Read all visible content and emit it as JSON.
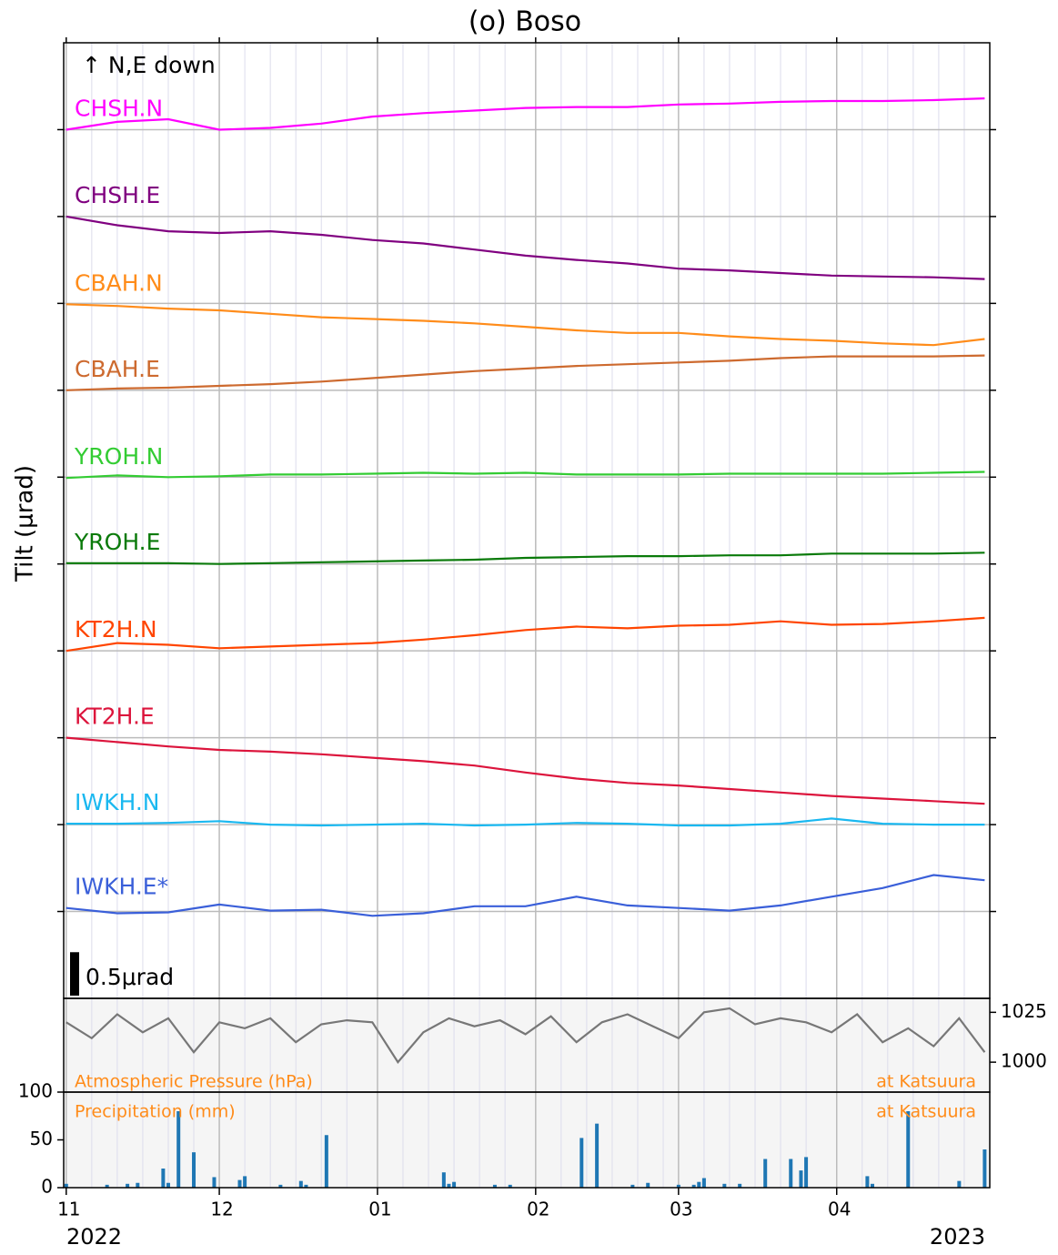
{
  "chart_data": [
    {
      "type": "line",
      "title": "(o) Boso",
      "y_label": "Tilt (μrad)",
      "annotation": "↑ N,E down",
      "scale_bar": {
        "value": 0.5,
        "label": "0.5μrad"
      },
      "xlim": [
        -0.5,
        181
      ],
      "ylim": [
        -10,
        1
      ],
      "yticks": [
        -9,
        -8,
        -7,
        -6,
        -5,
        -4,
        -3,
        -2,
        -1,
        0
      ],
      "grid": true,
      "x": [
        0,
        10,
        20,
        30,
        40,
        50,
        60,
        70,
        80,
        90,
        100,
        110,
        120,
        130,
        140,
        150,
        160,
        170,
        180
      ],
      "series": [
        {
          "name": "CHSH.N",
          "color": "#ff00ff",
          "values": [
            0.0,
            0.09,
            0.12,
            0.0,
            0.02,
            0.07,
            0.15,
            0.19,
            0.22,
            0.25,
            0.26,
            0.26,
            0.29,
            0.3,
            0.32,
            0.33,
            0.33,
            0.34,
            0.36
          ]
        },
        {
          "name": "CHSH.E",
          "color": "#800080",
          "values": [
            -1,
            -1.1,
            -1.17,
            -1.19,
            -1.17,
            -1.21,
            -1.27,
            -1.31,
            -1.38,
            -1.45,
            -1.5,
            -1.54,
            -1.6,
            -1.62,
            -1.65,
            -1.68,
            -1.69,
            -1.7,
            -1.72
          ]
        },
        {
          "name": "CBAH.N",
          "color": "#ff8c1a",
          "values": [
            -2.01,
            -2.03,
            -2.06,
            -2.08,
            -2.12,
            -2.16,
            -2.18,
            -2.2,
            -2.23,
            -2.27,
            -2.31,
            -2.34,
            -2.34,
            -2.38,
            -2.41,
            -2.43,
            -2.46,
            -2.48,
            -2.41
          ]
        },
        {
          "name": "CBAH.E",
          "color": "#cd6a2f",
          "values": [
            -3,
            -2.98,
            -2.97,
            -2.95,
            -2.93,
            -2.9,
            -2.86,
            -2.82,
            -2.78,
            -2.75,
            -2.72,
            -2.7,
            -2.68,
            -2.66,
            -2.63,
            -2.61,
            -2.61,
            -2.61,
            -2.6
          ]
        },
        {
          "name": "YROH.N",
          "color": "#33cc33",
          "values": [
            -4.01,
            -3.98,
            -4,
            -3.99,
            -3.97,
            -3.97,
            -3.96,
            -3.95,
            -3.96,
            -3.95,
            -3.97,
            -3.97,
            -3.97,
            -3.96,
            -3.96,
            -3.96,
            -3.96,
            -3.95,
            -3.94
          ]
        },
        {
          "name": "YROH.E",
          "color": "#0a7a0a",
          "values": [
            -4.99,
            -4.99,
            -4.99,
            -5,
            -4.99,
            -4.98,
            -4.97,
            -4.96,
            -4.95,
            -4.93,
            -4.92,
            -4.91,
            -4.91,
            -4.9,
            -4.9,
            -4.88,
            -4.88,
            -4.88,
            -4.87
          ]
        },
        {
          "name": "KT2H.N",
          "color": "#ff4500",
          "values": [
            -6,
            -5.91,
            -5.93,
            -5.97,
            -5.95,
            -5.93,
            -5.91,
            -5.87,
            -5.82,
            -5.76,
            -5.72,
            -5.74,
            -5.71,
            -5.7,
            -5.66,
            -5.7,
            -5.69,
            -5.66,
            -5.62
          ]
        },
        {
          "name": "KT2H.E",
          "color": "#dc143c",
          "values": [
            -7,
            -7.05,
            -7.1,
            -7.14,
            -7.16,
            -7.19,
            -7.23,
            -7.27,
            -7.32,
            -7.4,
            -7.47,
            -7.52,
            -7.55,
            -7.59,
            -7.63,
            -7.67,
            -7.7,
            -7.73,
            -7.76
          ]
        },
        {
          "name": "IWKH.N",
          "color": "#1ab8f0",
          "values": [
            -7.99,
            -7.99,
            -7.98,
            -7.96,
            -8,
            -8.01,
            -8,
            -7.99,
            -8.01,
            -8,
            -7.98,
            -7.99,
            -8.01,
            -8.01,
            -7.99,
            -7.93,
            -7.99,
            -8,
            -8
          ]
        },
        {
          "name": "IWKH.E*",
          "color": "#3a5fd9",
          "values": [
            -8.96,
            -9.02,
            -9.01,
            -8.92,
            -8.99,
            -8.98,
            -9.05,
            -9.02,
            -8.94,
            -8.94,
            -8.83,
            -8.93,
            -8.96,
            -8.99,
            -8.93,
            -8.83,
            -8.73,
            -8.58,
            -8.64
          ]
        }
      ]
    },
    {
      "type": "line",
      "label": "Atmospheric Pressure (hPa)",
      "location": "at Katsuura",
      "yaxis_position": "right",
      "xlim": [
        -0.5,
        181
      ],
      "ylim": [
        985,
        1032
      ],
      "yticks": [
        1000,
        1025
      ],
      "x": [
        0,
        5,
        10,
        15,
        20,
        25,
        30,
        35,
        40,
        45,
        50,
        55,
        60,
        65,
        70,
        75,
        80,
        85,
        90,
        95,
        100,
        105,
        110,
        115,
        120,
        125,
        130,
        135,
        140,
        145,
        150,
        155,
        160,
        165,
        170,
        175,
        180
      ],
      "series": [
        {
          "name": "Atmospheric Pressure",
          "color": "#777777",
          "values": [
            1020,
            1012,
            1024,
            1015,
            1022,
            1005,
            1020,
            1017,
            1022,
            1010,
            1019,
            1021,
            1020,
            1000,
            1015,
            1022,
            1018,
            1021,
            1014,
            1023,
            1010,
            1020,
            1024,
            1018,
            1012,
            1025,
            1027,
            1019,
            1022,
            1020,
            1015,
            1024,
            1010,
            1017,
            1008,
            1022,
            1005
          ]
        }
      ]
    },
    {
      "type": "bar",
      "label": "Precipitation (mm)",
      "location": "at Katsuura",
      "color": "#1f77b4",
      "xlim": [
        -0.5,
        181
      ],
      "ylim": [
        0,
        100
      ],
      "yticks": [
        0,
        50,
        100
      ],
      "xticks": [
        {
          "value": 0,
          "label": "11"
        },
        {
          "value": 30,
          "label": "12"
        },
        {
          "value": 61,
          "label": "01"
        },
        {
          "value": 92,
          "label": "02"
        },
        {
          "value": 120,
          "label": "03"
        },
        {
          "value": 151,
          "label": "04"
        }
      ],
      "xminorticks": [
        5,
        10,
        15,
        20,
        25,
        35,
        40,
        45,
        50,
        55,
        66,
        71,
        76,
        81,
        86,
        97,
        102,
        107,
        112,
        117,
        125,
        130,
        135,
        140,
        145,
        156,
        161,
        166,
        171,
        176
      ],
      "year_labels": [
        "2022",
        "2023"
      ],
      "x": [
        0,
        8,
        12,
        14,
        19,
        20,
        22,
        25,
        29,
        34,
        35,
        42,
        46,
        47,
        51,
        74,
        75,
        76,
        84,
        87,
        101,
        104,
        111,
        114,
        120,
        123,
        124,
        125,
        129,
        132,
        137,
        142,
        144,
        145,
        157,
        158,
        165,
        175,
        180
      ],
      "values": [
        4,
        3,
        4,
        5,
        20,
        5,
        80,
        37,
        11,
        8,
        12,
        3,
        7,
        3,
        55,
        16,
        4,
        6,
        3,
        3,
        52,
        67,
        3,
        5,
        3,
        3,
        6,
        10,
        4,
        4,
        30,
        30,
        18,
        32,
        12,
        4,
        80,
        7,
        40
      ]
    }
  ]
}
